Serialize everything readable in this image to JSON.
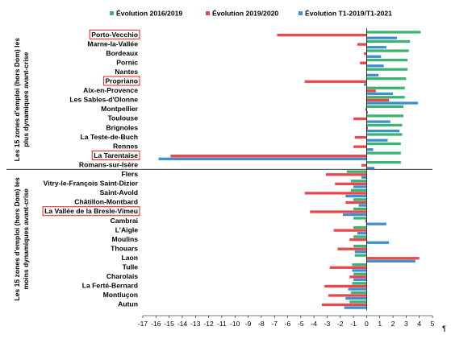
{
  "chart_data": {
    "type": "bar",
    "orientation": "horizontal",
    "title": "",
    "xlabel": "",
    "ylabel": "",
    "xlim": [
      -17,
      5
    ],
    "x_ticks": [
      "-17",
      "-16",
      "-15",
      "-14",
      "-13",
      "-12",
      "-11",
      "-10",
      "-9",
      "-8",
      "-7",
      "-6",
      "-5",
      "-4",
      "-3",
      "-2",
      "-1",
      "0",
      "1",
      "2",
      "3",
      "4",
      "5"
    ],
    "legend_position": "top",
    "grid": false,
    "group_labels": [
      {
        "text": "Les 15 zones d'emploi (hors Dom) les plus dynamiques avant-crise",
        "lines": [
          "Les 15 zones d'emploi (hors Dom) les",
          "plus dynamiques avant-crise"
        ]
      },
      {
        "text": "Les 15 zones d'emploi (hors Dom) les moins dynamiques avant-crise",
        "lines": [
          "Les 15 zones d'emploi (hors Dom) les",
          "moins dynamiques avant-crise"
        ]
      }
    ],
    "categories": [
      "Porto-Vecchio",
      "Marne-la-Vallée",
      "Bordeaux",
      "Pornic",
      "Nantes",
      "Propriano",
      "Aix-en-Provence",
      "Les Sables-d'Olonne",
      "Montpellier",
      "Toulouse",
      "Brignoles",
      "La Teste-de-Buch",
      "Rennes",
      "La Tarentaise",
      "Romans-sur-Isère",
      "Flers",
      "Vitry-le-François Saint-Dizier",
      "Saint-Avold",
      "Châtillon-Montbard",
      "La Vallée de la Bresle-Vimeu",
      "Cambrai",
      "L'Aigle",
      "Moulins",
      "Thouars",
      "Laon",
      "Tulle",
      "Charolais",
      "La Ferté-Bernard",
      "Montluçon",
      "Autun"
    ],
    "highlighted": [
      "Porto-Vecchio",
      "Propriano",
      "La Tarentaise",
      "La Vallée de la Bresle-Vimeu"
    ],
    "series": [
      {
        "name": "Évolution 2016/2019",
        "color": "#3cb371",
        "values": [
          4.1,
          3.3,
          3.2,
          3.1,
          3.1,
          3.0,
          2.9,
          2.9,
          2.8,
          2.8,
          2.7,
          2.7,
          2.6,
          2.6,
          2.6,
          -1.5,
          -1.2,
          -1.2,
          -1.0,
          -1.0,
          -1.0,
          -1.0,
          -1.0,
          -1.0,
          -0.9,
          -1.1,
          -1.0,
          -1.1,
          -1.2,
          -1.3
        ]
      },
      {
        "name": "Évolution 2019/2020",
        "color": "#e8474c",
        "values": [
          -6.8,
          -0.7,
          -0.2,
          -0.5,
          0.0,
          -4.7,
          0.7,
          1.7,
          -0.1,
          -1.0,
          0.1,
          -0.9,
          -1.0,
          -14.9,
          -0.4,
          -3.1,
          -2.4,
          -4.7,
          -1.6,
          -4.3,
          -0.1,
          -2.5,
          -1.3,
          -2.2,
          4.0,
          -2.8,
          -1.3,
          -3.2,
          -2.9,
          -3.4
        ]
      },
      {
        "name": "Évolution T1-2019/T1-2021",
        "color": "#3d8fd0",
        "values": [
          2.3,
          1.5,
          1.1,
          1.3,
          0.9,
          -0.2,
          2.0,
          3.9,
          0.1,
          1.8,
          2.5,
          1.6,
          0.5,
          -15.8,
          0.6,
          -0.4,
          -1.0,
          -1.6,
          -0.6,
          -1.8,
          1.5,
          -0.7,
          1.7,
          -0.9,
          3.7,
          -1.1,
          -1.0,
          -1.4,
          -1.6,
          -1.7
        ]
      }
    ]
  }
}
